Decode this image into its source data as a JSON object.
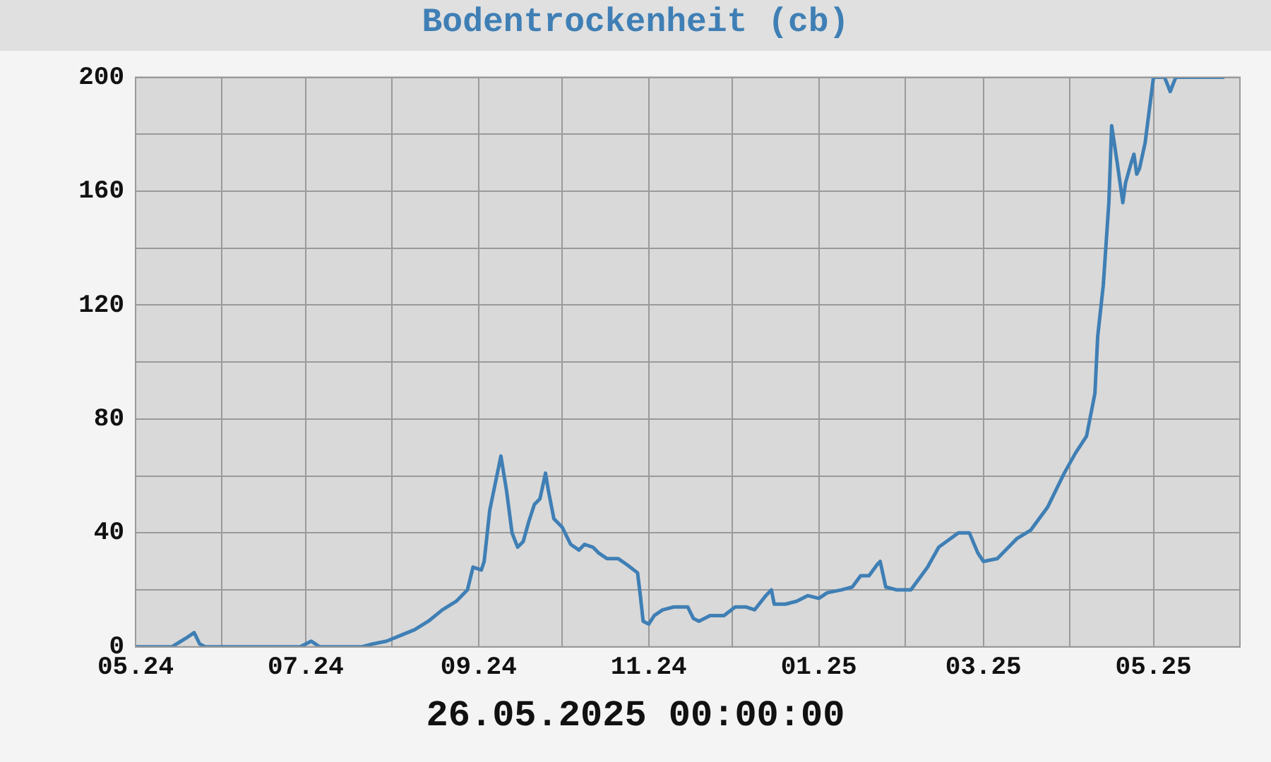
{
  "chart_data": {
    "type": "line",
    "title": "Bodentrockenheit (cb)",
    "annotations": [
      "26.05.2025 00:00:00"
    ],
    "x": [
      "2024-05-01",
      "2024-05-14",
      "2024-05-19",
      "2024-05-22",
      "2024-05-24",
      "2024-05-26",
      "2024-06-29",
      "2024-07-03",
      "2024-07-06",
      "2024-07-21",
      "2024-07-25",
      "2024-07-30",
      "2024-08-04",
      "2024-08-09",
      "2024-08-14",
      "2024-08-19",
      "2024-08-24",
      "2024-08-28",
      "2024-08-30",
      "2024-09-02",
      "2024-09-03",
      "2024-09-05",
      "2024-09-09",
      "2024-09-11",
      "2024-09-13",
      "2024-09-15",
      "2024-09-17",
      "2024-09-19",
      "2024-09-21",
      "2024-09-23",
      "2024-09-25",
      "2024-09-26",
      "2024-09-28",
      "2024-10-01",
      "2024-10-04",
      "2024-10-07",
      "2024-10-09",
      "2024-10-12",
      "2024-10-14",
      "2024-10-17",
      "2024-10-21",
      "2024-10-24",
      "2024-10-28",
      "2024-10-29",
      "2024-10-30",
      "2024-11-01",
      "2024-11-03",
      "2024-11-06",
      "2024-11-10",
      "2024-11-15",
      "2024-11-17",
      "2024-11-19",
      "2024-11-23",
      "2024-11-28",
      "2024-12-02",
      "2024-12-06",
      "2024-12-09",
      "2024-12-13",
      "2024-12-15",
      "2024-12-16",
      "2024-12-20",
      "2024-12-24",
      "2024-12-28",
      "2025-01-01",
      "2025-01-04",
      "2025-01-09",
      "2025-01-13",
      "2025-01-16",
      "2025-01-19",
      "2025-01-22",
      "2025-01-23",
      "2025-01-25",
      "2025-01-29",
      "2025-02-03",
      "2025-02-06",
      "2025-02-09",
      "2025-02-13",
      "2025-02-20",
      "2025-02-24",
      "2025-02-27",
      "2025-03-01",
      "2025-03-06",
      "2025-03-13",
      "2025-03-18",
      "2025-03-24",
      "2025-03-30",
      "2025-04-03",
      "2025-04-07",
      "2025-04-10",
      "2025-04-11",
      "2025-04-13",
      "2025-04-15",
      "2025-04-16",
      "2025-04-18",
      "2025-04-20",
      "2025-04-21",
      "2025-04-23",
      "2025-04-24",
      "2025-04-25",
      "2025-04-26",
      "2025-04-28",
      "2025-05-01",
      "2025-05-05",
      "2025-05-07",
      "2025-05-09",
      "2025-05-26"
    ],
    "series": [
      {
        "color": "#3f7fb5",
        "values": [
          0,
          0,
          3,
          5,
          1,
          0,
          0,
          2,
          0,
          0,
          1,
          2,
          4,
          6,
          9,
          13,
          16,
          20,
          28,
          27,
          30,
          48,
          67,
          55,
          40,
          35,
          37,
          44,
          50,
          52,
          61,
          55,
          45,
          42,
          36,
          34,
          36,
          35,
          33,
          31,
          31,
          29,
          26,
          18,
          9,
          8,
          11,
          13,
          14,
          14,
          10,
          9,
          11,
          11,
          14,
          14,
          13,
          18,
          20,
          15,
          15,
          16,
          18,
          17,
          19,
          20,
          21,
          25,
          25,
          29,
          30,
          21,
          20,
          20,
          24,
          28,
          35,
          40,
          40,
          33,
          30,
          31,
          38,
          41,
          49,
          61,
          68,
          74,
          89,
          109,
          127,
          156,
          183,
          170,
          156,
          163,
          170,
          173,
          166,
          168,
          177,
          200,
          200,
          195,
          200,
          200
        ]
      }
    ],
    "xlim": [
      "2024-05-01",
      "2025-06-01"
    ],
    "xticks": [
      {
        "value": "2024-05-01",
        "label": "05.24"
      },
      {
        "value": "2024-06-01",
        "label": null
      },
      {
        "value": "2024-07-01",
        "label": "07.24"
      },
      {
        "value": "2024-08-01",
        "label": null
      },
      {
        "value": "2024-09-01",
        "label": "09.24"
      },
      {
        "value": "2024-10-01",
        "label": null
      },
      {
        "value": "2024-11-01",
        "label": "11.24"
      },
      {
        "value": "2024-12-01",
        "label": null
      },
      {
        "value": "2025-01-01",
        "label": "01.25"
      },
      {
        "value": "2025-02-01",
        "label": null
      },
      {
        "value": "2025-03-01",
        "label": "03.25"
      },
      {
        "value": "2025-04-01",
        "label": null
      },
      {
        "value": "2025-05-01",
        "label": "05.25"
      }
    ],
    "ylim": [
      0,
      200
    ],
    "yticks": [
      0,
      {
        "value": 20,
        "label": null
      },
      40,
      {
        "value": 60,
        "label": null
      },
      80,
      {
        "value": 100,
        "label": null
      },
      120,
      {
        "value": 140,
        "label": null
      },
      160,
      {
        "value": 180,
        "label": null
      },
      200
    ],
    "grid": true,
    "marker": "none",
    "line_style": "solid"
  }
}
